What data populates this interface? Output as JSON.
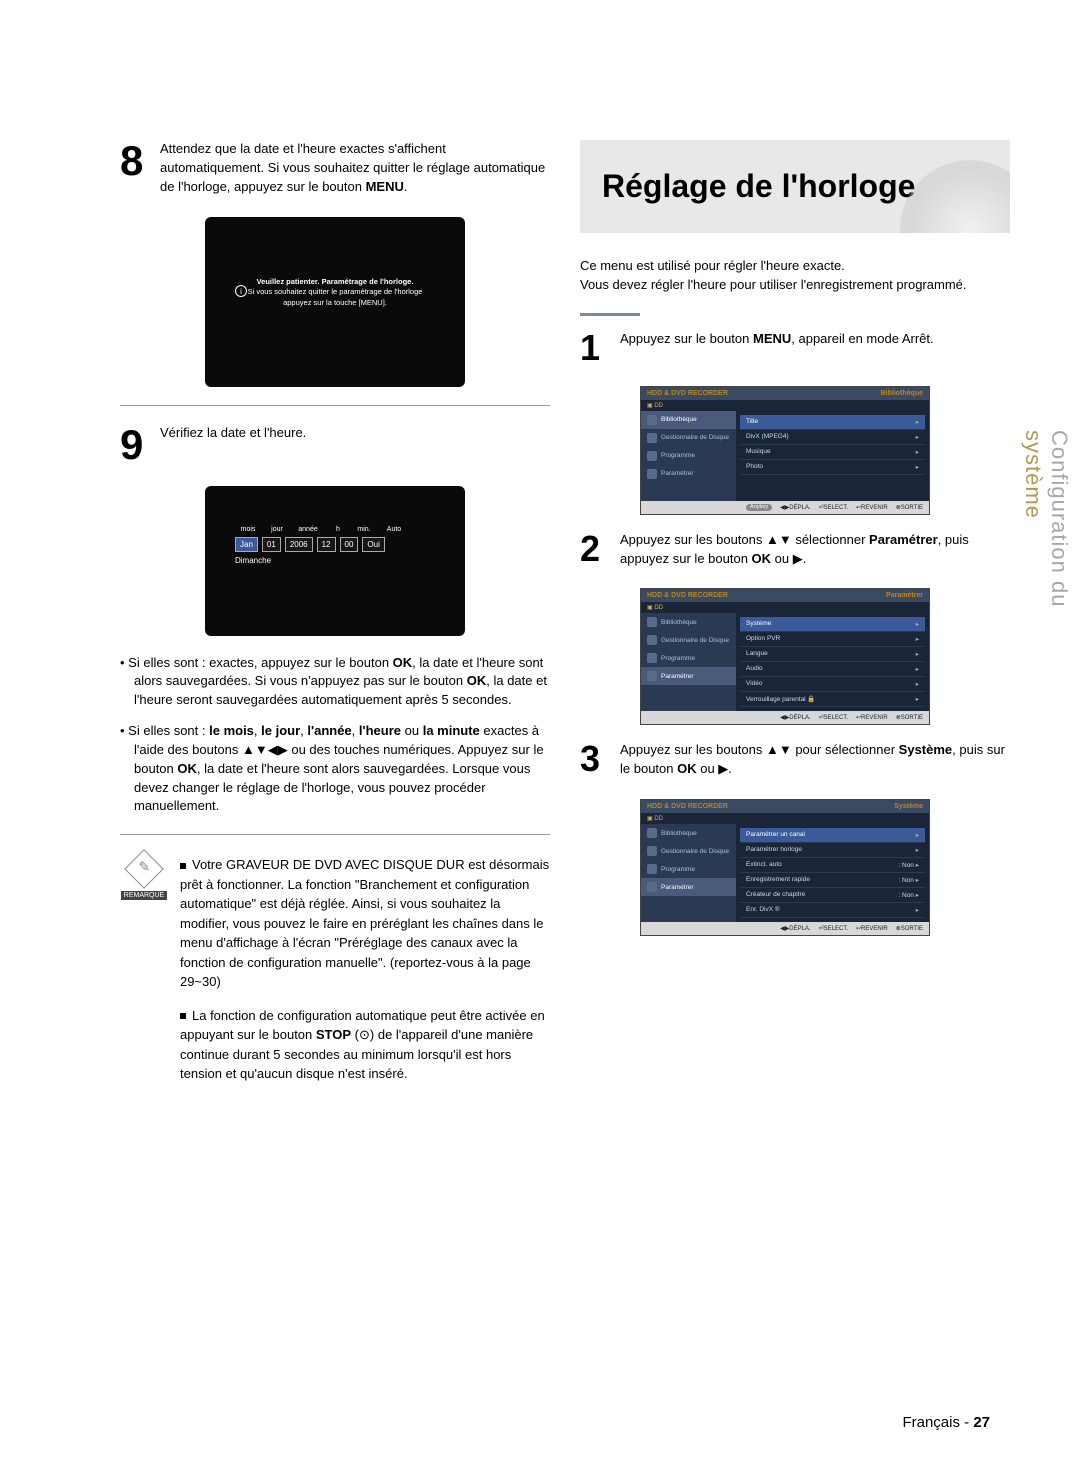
{
  "left": {
    "step8": {
      "num": "8",
      "text_parts": [
        "Attendez que la date et l'heure exactes s'affichent automatiquement. Si vous souhaitez quitter le réglage automatique de l'horloge, appuyez sur le bouton ",
        "MENU",
        "."
      ]
    },
    "wait_msg": {
      "info": "i",
      "line1": "Veuillez patienter. Paramétrage de l'horloge.",
      "line2": "Si vous souhaitez quitter le paramétrage de l'horloge",
      "line3": "appuyez sur la touche [MENU]."
    },
    "step9": {
      "num": "9",
      "text": "Vérifiez la date et l'heure."
    },
    "clock": {
      "labels": [
        "mois",
        "jour",
        "année",
        "h",
        "min.",
        "Auto"
      ],
      "values": [
        "Jan",
        "01",
        "2006",
        "12",
        "00",
        "Oui"
      ],
      "day": "Dimanche"
    },
    "bullet1_parts": [
      "Si elles sont : exactes, appuyez sur le bouton ",
      "OK",
      ", la date et l'heure sont alors sauvegardées. Si vous n'appuyez pas sur le bouton ",
      "OK",
      ", la date et l'heure seront sauvegardées automatiquement après 5 secondes."
    ],
    "bullet2_parts": [
      "Si elles sont : ",
      "le mois",
      ", ",
      "le jour",
      ", ",
      "l'année",
      ", ",
      "l'heure",
      " ou ",
      "la minute",
      " exactes à l'aide des boutons ▲▼◀▶ ou des touches numériques. Appuyez sur le bouton ",
      "OK",
      ", la date et l'heure sont alors sauvegardées. Lorsque vous devez changer le réglage de l'horloge, vous pouvez procéder manuellement."
    ],
    "note": {
      "label": "REMARQUE",
      "p1": "Votre GRAVEUR DE DVD AVEC DISQUE DUR est désormais prêt à fonctionner. La fonction \"Branchement et configuration automatique\" est déjà réglée. Ainsi, si vous souhaitez la modifier, vous pouvez le faire en préréglant les chaînes dans le menu d'affichage à l'écran \"Préréglage des canaux avec la fonction de configuration manuelle\". (reportez-vous à la page 29~30)",
      "p2_parts": [
        "La fonction de configuration automatique peut être activée en appuyant sur le bouton ",
        "STOP",
        " (⊙) de l'appareil d'une manière continue durant 5 secondes au minimum lorsqu'il est hors tension et qu'aucun disque n'est inséré."
      ]
    }
  },
  "right": {
    "title": "Réglage de l'horloge",
    "intro1": "Ce menu est utilisé pour régler l'heure exacte.",
    "intro2": "Vous devez régler l'heure pour utiliser l'enregistrement programmé.",
    "step1": {
      "num": "1",
      "text_parts": [
        "Appuyez sur le bouton ",
        "MENU",
        ", appareil en mode Arrêt."
      ]
    },
    "osd1": {
      "header_l": "HDD & DVD RECORDER",
      "header_r": "Bibliothèque",
      "dd": "DD",
      "side": [
        {
          "label": "Bibliothèque",
          "sel": true
        },
        {
          "label": "Gestionnaire de Disque",
          "sel": false
        },
        {
          "label": "Programme",
          "sel": false
        },
        {
          "label": "Paramétrer",
          "sel": false
        }
      ],
      "main": [
        {
          "label": "Title",
          "sel": true,
          "val": ""
        },
        {
          "label": "DivX (MPEG4)",
          "sel": false,
          "val": ""
        },
        {
          "label": "Musique",
          "sel": false,
          "val": ""
        },
        {
          "label": "Photo",
          "sel": false,
          "val": ""
        }
      ],
      "footer": [
        "◀▶DÉPLA.",
        "⏎SELECT.",
        "↩REVENIR",
        "⊗SORTIE"
      ],
      "anykey": "Anykey"
    },
    "step2": {
      "num": "2",
      "text_parts": [
        "Appuyez sur les boutons ▲▼ sélectionner ",
        "Paramétrer",
        ", puis appuyez sur le bouton ",
        "OK",
        " ou ▶."
      ]
    },
    "osd2": {
      "header_l": "HDD & DVD RECORDER",
      "header_r": "Paramétrer",
      "dd": "DD",
      "side": [
        {
          "label": "Bibliothèque",
          "sel": false
        },
        {
          "label": "Gestionnaire de Disque",
          "sel": false
        },
        {
          "label": "Programme",
          "sel": false
        },
        {
          "label": "Paramétrer",
          "sel": true
        }
      ],
      "main": [
        {
          "label": "Système",
          "sel": true,
          "val": ""
        },
        {
          "label": "Option PVR",
          "sel": false,
          "val": ""
        },
        {
          "label": "Langue",
          "sel": false,
          "val": ""
        },
        {
          "label": "Audio",
          "sel": false,
          "val": ""
        },
        {
          "label": "Vidéo",
          "sel": false,
          "val": ""
        },
        {
          "label": "Verrouillage parental 🔒",
          "sel": false,
          "val": ""
        }
      ],
      "footer": [
        "◀▶DÉPLA.",
        "⏎SELECT.",
        "↩REVENIR",
        "⊗SORTIE"
      ]
    },
    "step3": {
      "num": "3",
      "text_parts": [
        "Appuyez sur les boutons ▲▼ pour sélectionner ",
        "Système",
        ", puis sur le bouton ",
        "OK",
        " ou ▶."
      ]
    },
    "osd3": {
      "header_l": "HDD & DVD RECORDER",
      "header_r": "Système",
      "dd": "DD",
      "side": [
        {
          "label": "Bibliothèque",
          "sel": false
        },
        {
          "label": "Gestionnaire de Disque",
          "sel": false
        },
        {
          "label": "Programme",
          "sel": false
        },
        {
          "label": "Paramétrer",
          "sel": true
        }
      ],
      "main": [
        {
          "label": "Paramétrer un canal",
          "sel": true,
          "val": ""
        },
        {
          "label": "Paramétrer horloge",
          "sel": false,
          "val": ""
        },
        {
          "label": "Extinct. auto",
          "sel": false,
          "val": ": Non"
        },
        {
          "label": "Enregistrement rapide",
          "sel": false,
          "val": ": Non"
        },
        {
          "label": "Créateur de chapitre",
          "sel": false,
          "val": ": Non"
        },
        {
          "label": "Enr. DivX ®",
          "sel": false,
          "val": ""
        }
      ],
      "footer": [
        "◀▶DÉPLA.",
        "⏎SELECT.",
        "↩REVENIR",
        "⊗SORTIE"
      ]
    },
    "side_tab": {
      "l1": "Configuration du",
      "l2": "système"
    }
  },
  "footer": {
    "lang": "Français",
    "sep": " - ",
    "page": "27"
  }
}
